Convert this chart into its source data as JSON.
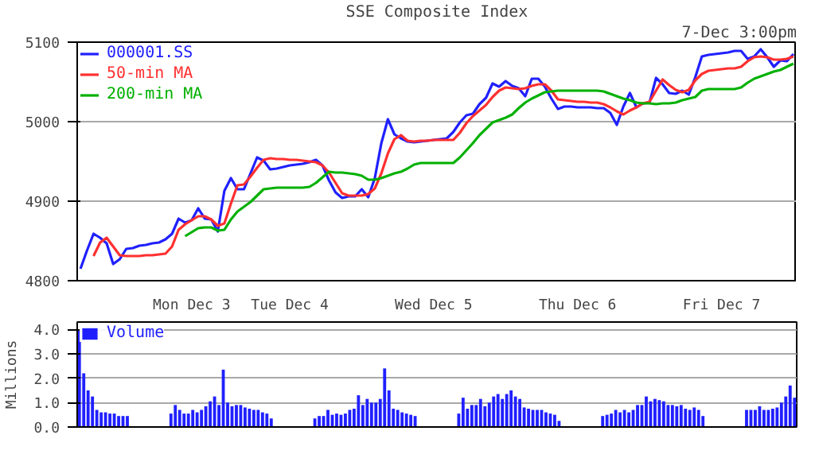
{
  "chart_data": [
    {
      "type": "line",
      "title": "SSE Composite Index",
      "annotations": [
        "7-Dec 3:00pm"
      ],
      "categories": [
        null,
        null,
        null,
        null,
        null,
        null,
        null,
        null,
        null,
        null,
        null,
        null,
        null,
        null,
        null,
        null,
        null,
        "Mon Dec 3",
        null,
        null,
        null,
        null,
        null,
        null,
        null,
        null,
        null,
        null,
        null,
        null,
        null,
        null,
        "Tue Dec 4",
        null,
        null,
        null,
        null,
        null,
        null,
        null,
        null,
        null,
        null,
        null,
        null,
        null,
        null,
        null,
        null,
        null,
        null,
        null,
        null,
        null,
        "Wed Dec 5",
        null,
        null,
        null,
        null,
        null,
        null,
        null,
        null,
        null,
        null,
        null,
        null,
        null,
        null,
        null,
        null,
        null,
        null,
        null,
        null,
        null,
        "Thu Dec 6",
        null,
        null,
        null,
        null,
        null,
        null,
        null,
        null,
        null,
        null,
        null,
        null,
        null,
        null,
        null,
        null,
        null,
        null,
        null,
        null,
        null,
        "Fri Dec 7",
        null,
        null,
        null,
        null,
        null,
        null,
        null,
        null,
        null,
        null,
        null
      ],
      "ylim": [
        4800,
        5100
      ],
      "yticks": [
        4800,
        4900,
        5000,
        5100
      ],
      "grid": "y",
      "legend": "top left",
      "line_style": "solid",
      "marker": "none",
      "series": [
        {
          "name": "000001.SS",
          "color": "#2020ff",
          "values": [
            4815,
            4838,
            4859,
            4854,
            4847,
            4821,
            4827,
            4840,
            4841,
            4844,
            4845,
            4847,
            4848,
            4852,
            4859,
            4878,
            4873,
            4876,
            4891,
            4878,
            4877,
            4862,
            4913,
            4929,
            4915,
            4915,
            4935,
            4955,
            4951,
            4940,
            4941,
            4943,
            4945,
            4946,
            4947,
            4949,
            4952,
            4945,
            4926,
            4911,
            4904,
            4906,
            4906,
            4915,
            4905,
            4929,
            4973,
            5003,
            4984,
            4979,
            4975,
            4974,
            4975,
            4976,
            4977,
            4978,
            4979,
            4987,
            4999,
            5008,
            5010,
            5022,
            5030,
            5048,
            5044,
            5051,
            5045,
            5042,
            5032,
            5054,
            5054,
            5044,
            5029,
            5016,
            5019,
            5019,
            5018,
            5018,
            5018,
            5017,
            5017,
            5011,
            4996,
            5019,
            5036,
            5018,
            5023,
            5024,
            5055,
            5047,
            5036,
            5035,
            5039,
            5034,
            5056,
            5082,
            5084,
            5085,
            5086,
            5087,
            5089,
            5089,
            5079,
            5082,
            5091,
            5081,
            5069,
            5077,
            5076,
            5085
          ]
        },
        {
          "name": "50-min MA",
          "color": "#ff3030",
          "values": [
            null,
            null,
            4831,
            4848,
            4854,
            4843,
            4832,
            4831,
            4831,
            4831,
            4832,
            4832,
            4833,
            4834,
            4843,
            4864,
            4871,
            4876,
            4881,
            4881,
            4877,
            4869,
            4872,
            4897,
            4920,
            4921,
            4931,
            4942,
            4952,
            4954,
            4953,
            4953,
            4952,
            4952,
            4951,
            4950,
            4949,
            4945,
            4936,
            4923,
            4910,
            4907,
            4907,
            4907,
            4909,
            4916,
            4935,
            4960,
            4978,
            4983,
            4976,
            4975,
            4976,
            4976,
            4977,
            4977,
            4977,
            4977,
            4986,
            4998,
            5007,
            5014,
            5021,
            5031,
            5039,
            5043,
            5042,
            5041,
            5042,
            5045,
            5047,
            5047,
            5039,
            5028,
            5027,
            5026,
            5025,
            5025,
            5024,
            5024,
            5022,
            5018,
            5013,
            5009,
            5014,
            5018,
            5023,
            5025,
            5039,
            5053,
            5046,
            5040,
            5037,
            5040,
            5052,
            5060,
            5064,
            5065,
            5066,
            5067,
            5067,
            5069,
            5076,
            5081,
            5082,
            5081,
            5078,
            5078,
            5079,
            5082
          ]
        },
        {
          "name": "200-min MA",
          "color": "#00b000",
          "values": [
            null,
            null,
            null,
            null,
            null,
            null,
            null,
            null,
            null,
            null,
            null,
            null,
            null,
            null,
            null,
            null,
            4856,
            4861,
            4866,
            4867,
            4867,
            4863,
            4864,
            4877,
            4887,
            4893,
            4899,
            4907,
            4915,
            4916,
            4917,
            4917,
            4917,
            4917,
            4917,
            4918,
            4923,
            4930,
            4937,
            4936,
            4936,
            4935,
            4934,
            4932,
            4927,
            4927,
            4929,
            4932,
            4935,
            4937,
            4941,
            4946,
            4948,
            4948,
            4948,
            4948,
            4948,
            4948,
            4955,
            4964,
            4973,
            4983,
            4991,
            4999,
            5002,
            5005,
            5009,
            5017,
            5024,
            5029,
            5033,
            5037,
            5038,
            5039,
            5039,
            5039,
            5039,
            5039,
            5039,
            5039,
            5038,
            5035,
            5032,
            5029,
            5027,
            5024,
            5023,
            5023,
            5022,
            5023,
            5023,
            5024,
            5027,
            5029,
            5031,
            5039,
            5041,
            5041,
            5041,
            5041,
            5041,
            5043,
            5049,
            5054,
            5057,
            5060,
            5063,
            5065,
            5069,
            5073
          ]
        }
      ]
    },
    {
      "type": "bar",
      "ylabel": "Millions",
      "ylim": [
        0,
        4.3
      ],
      "categories": [
        null,
        null,
        null,
        null,
        null,
        null,
        null,
        null,
        null,
        null,
        null,
        null,
        null,
        null,
        null,
        null,
        null,
        null,
        null,
        null,
        null,
        null,
        null,
        null,
        null,
        null,
        null,
        null,
        null,
        null,
        null,
        null,
        null,
        null,
        null,
        null,
        null,
        null,
        null,
        null,
        null,
        null,
        null,
        null,
        null,
        null,
        null,
        null,
        null,
        null,
        null,
        null,
        null,
        null,
        null,
        null,
        null,
        null,
        null,
        null,
        null,
        null,
        null,
        null,
        null,
        null,
        null,
        null,
        null,
        null,
        null,
        null,
        null,
        null,
        null,
        null,
        null,
        null,
        null,
        null,
        null,
        null,
        null,
        null,
        null,
        null,
        null,
        null,
        null,
        null,
        null,
        null,
        null,
        null,
        null,
        null,
        null,
        null,
        null,
        null,
        null,
        null,
        null,
        null,
        null,
        null,
        null,
        null,
        null,
        null,
        null,
        null,
        null,
        null,
        null,
        null,
        null,
        null,
        null,
        null,
        null,
        null,
        null,
        null,
        null,
        null,
        null,
        null,
        null,
        null,
        null,
        null,
        null,
        null,
        null,
        null,
        null,
        null,
        null,
        null,
        null,
        null,
        null,
        null,
        null,
        null,
        null,
        null,
        null,
        null,
        null,
        null,
        null,
        null,
        null,
        null,
        null,
        null,
        null,
        null,
        null,
        null,
        null,
        null,
        null
      ],
      "yticks": [
        {
          "value": 0,
          "label": "0.0"
        },
        {
          "value": 1,
          "label": "1.0"
        },
        {
          "value": 2,
          "label": "2.0"
        },
        {
          "value": 3,
          "label": "3.0"
        },
        {
          "value": 4,
          "label": "4.0"
        }
      ],
      "tick_labels": "y",
      "grid": "y",
      "legend": "top left",
      "series": [
        {
          "name": "Volume",
          "color": "#2020ff",
          "values": [
            4.0,
            2.2,
            1.5,
            1.25,
            0.7,
            0.6,
            0.6,
            0.55,
            0.55,
            0.45,
            0.45,
            0.45,
            null,
            null,
            null,
            null,
            null,
            null,
            null,
            null,
            null,
            0.55,
            0.9,
            0.7,
            0.55,
            0.55,
            0.7,
            0.6,
            0.7,
            0.85,
            1.05,
            1.25,
            0.9,
            2.35,
            1.0,
            0.85,
            0.9,
            0.9,
            0.8,
            0.75,
            0.7,
            0.7,
            0.6,
            0.55,
            0.35,
            null,
            null,
            null,
            null,
            null,
            null,
            null,
            null,
            null,
            0.35,
            0.45,
            0.45,
            0.7,
            0.5,
            0.55,
            0.5,
            0.55,
            0.7,
            0.75,
            1.3,
            0.9,
            1.15,
            1.0,
            1.0,
            1.15,
            2.4,
            1.5,
            0.75,
            0.7,
            0.6,
            0.55,
            0.5,
            0.45,
            null,
            null,
            null,
            null,
            null,
            null,
            null,
            null,
            null,
            0.55,
            1.2,
            0.75,
            0.9,
            0.9,
            1.15,
            0.85,
            1.0,
            1.25,
            1.35,
            1.15,
            1.35,
            1.5,
            1.25,
            1.15,
            0.8,
            0.75,
            0.7,
            0.7,
            0.7,
            0.6,
            0.55,
            0.5,
            0.25,
            null,
            null,
            null,
            null,
            null,
            null,
            null,
            null,
            null,
            0.45,
            0.5,
            0.55,
            0.7,
            0.6,
            0.7,
            0.6,
            0.7,
            0.9,
            0.9,
            1.25,
            1.05,
            1.15,
            1.1,
            1.05,
            0.9,
            0.9,
            0.85,
            0.9,
            0.75,
            0.7,
            0.8,
            0.7,
            0.45,
            null,
            null,
            null,
            null,
            null,
            null,
            null,
            null,
            null,
            0.7,
            0.7,
            0.7,
            0.85,
            0.7,
            0.7,
            0.75,
            0.8,
            1.0,
            1.25,
            1.7,
            1.2
          ]
        }
      ]
    }
  ]
}
